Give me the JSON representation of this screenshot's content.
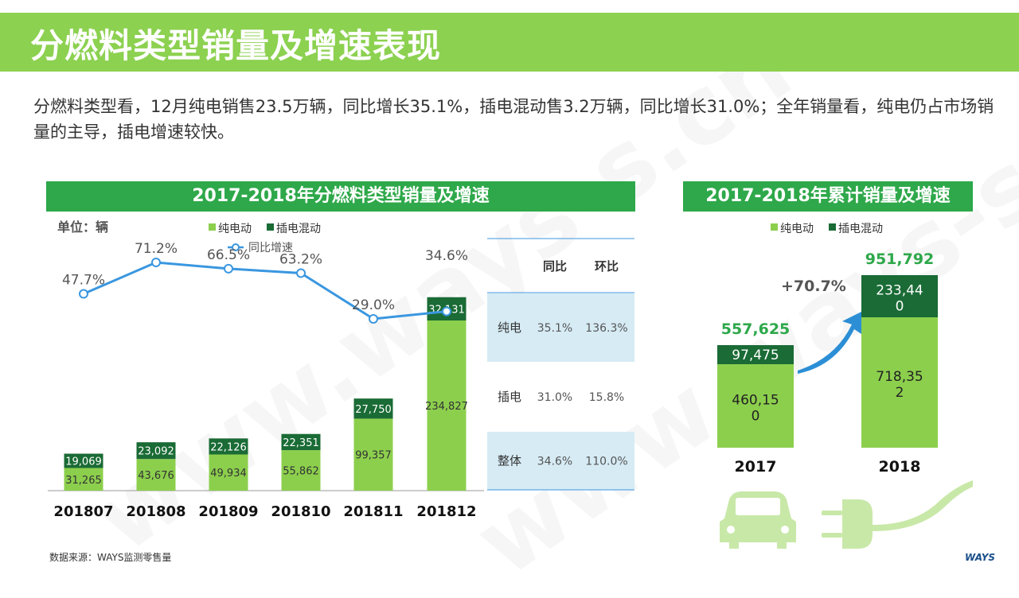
{
  "header": {
    "title": "分燃料类型销量及增速表现"
  },
  "summary_text": "分燃料类型看，12月纯电销售23.5万辆，同比增长35.1%，插电混动售3.2万辆，同比增长31.0%；全年销量看，纯电仍占市场销量的主导，插电增速较快。",
  "left_panel": {
    "title": "2017-2018年分燃料类型销量及增速",
    "unit": "单位：辆",
    "legend": {
      "ev": "纯电动",
      "phev": "插电混动",
      "growth": "同比增速"
    }
  },
  "table": {
    "headers": [
      "同比",
      "环比"
    ],
    "rows": [
      {
        "label": "纯电",
        "yoy": "35.1%",
        "mom": "136.3%"
      },
      {
        "label": "插电",
        "yoy": "31.0%",
        "mom": "15.8%"
      },
      {
        "label": "整体",
        "yoy": "34.6%",
        "mom": "110.0%"
      }
    ]
  },
  "right_panel": {
    "title": "2017-2018年累计销量及增速",
    "legend": {
      "ev": "纯电动",
      "phev": "插电混动"
    },
    "growth_label": "+70.7%"
  },
  "footer": {
    "source": "数据来源：WAYS监测零售量",
    "logo": "WAYS"
  },
  "watermark": "www.ways-s.cn",
  "colors": {
    "title_bar": "#8cd150",
    "panel_title": "#2ea84a",
    "ev": "#8ccf4d",
    "phev": "#1a6b35",
    "growth_line": "#3a97e0",
    "table_band": "#d6ebf4"
  },
  "icons": [
    "car-icon",
    "plug-icon",
    "arrow-icon"
  ],
  "chart_data": [
    {
      "type": "bar",
      "stacked": true,
      "title": "2017-2018年分燃料类型销量及增速",
      "categories": [
        "201807",
        "201808",
        "201809",
        "201810",
        "201811",
        "201812"
      ],
      "series": [
        {
          "name": "纯电动",
          "values": [
            31265,
            43676,
            49934,
            55862,
            99357,
            234827
          ]
        },
        {
          "name": "插电混动",
          "values": [
            19069,
            23092,
            22126,
            22351,
            27750,
            32131
          ]
        }
      ],
      "line_series": {
        "name": "同比增速",
        "values": [
          47.7,
          71.2,
          66.5,
          63.2,
          29.0,
          34.6
        ],
        "labels": [
          "47.7%",
          "71.2%",
          "66.5%",
          "63.2%",
          "29.0%",
          "34.6%"
        ]
      },
      "ev_labels": [
        "31,265",
        "43,676",
        "49,934",
        "55,862",
        "99,357",
        "234,827"
      ],
      "phev_labels": [
        "19,069",
        "23,092",
        "22,126",
        "22,351",
        "27,750",
        "32,131"
      ],
      "legend": "top",
      "grid": false
    },
    {
      "type": "bar",
      "stacked": true,
      "title": "2017-2018年累计销量及增速",
      "categories": [
        "2017",
        "2018"
      ],
      "series": [
        {
          "name": "纯电动",
          "values": [
            460150,
            718352
          ]
        },
        {
          "name": "插电混动",
          "values": [
            97475,
            233440
          ]
        }
      ],
      "totals": [
        557625,
        951792
      ],
      "ev_labels": [
        "460,150",
        "718,352"
      ],
      "phev_labels": [
        "97,475",
        "233,440"
      ],
      "total_labels": [
        "557,625",
        "951,792"
      ],
      "growth": "+70.7%",
      "legend": "top",
      "grid": false
    }
  ]
}
